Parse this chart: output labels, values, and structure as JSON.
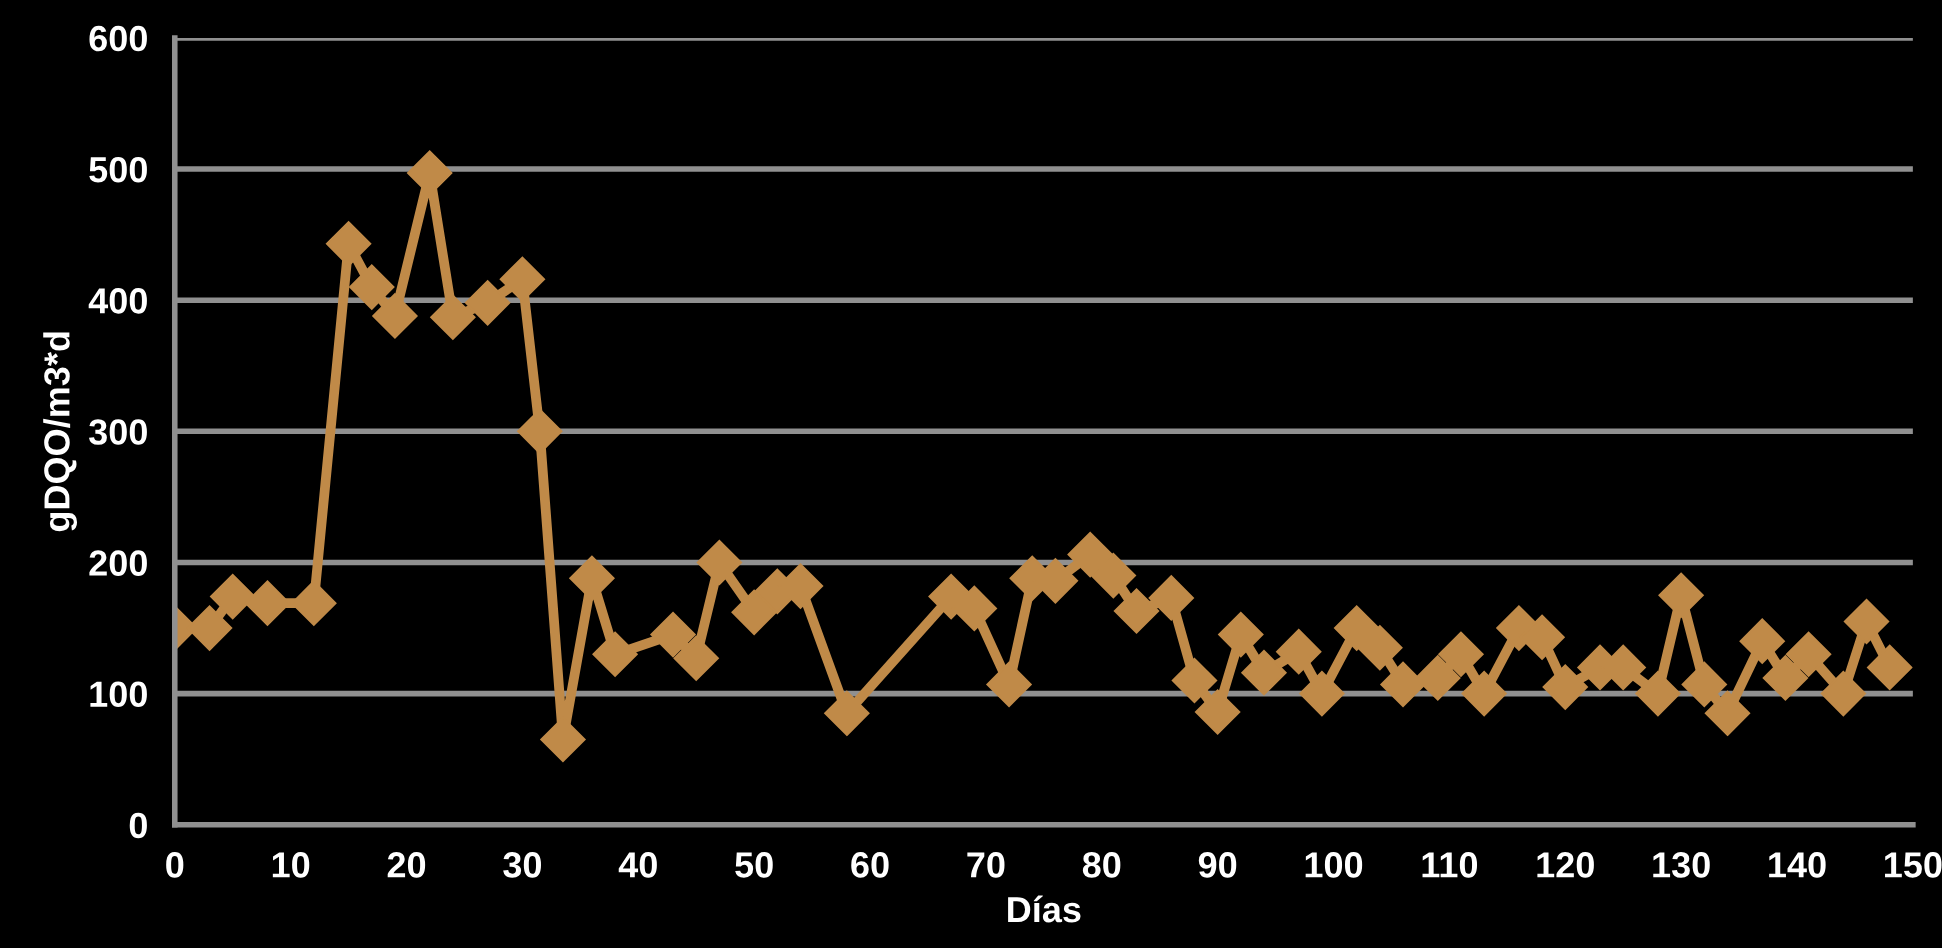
{
  "chart_data": {
    "type": "line",
    "xlabel": "Días",
    "ylabel": "gDQO/m3*d",
    "xlim": [
      0,
      150
    ],
    "xticks": [
      0,
      10,
      20,
      30,
      40,
      50,
      60,
      70,
      80,
      90,
      100,
      110,
      120,
      130,
      140,
      150
    ],
    "ylim": [
      0,
      600
    ],
    "yticks": [
      0,
      100,
      200,
      300,
      400,
      500,
      600
    ],
    "grid": "y",
    "marker": "diamond",
    "line_style": "solid",
    "legend": false,
    "series": [
      {
        "color": "#c08a48",
        "x": [
          0,
          3,
          5,
          8,
          12,
          15,
          17,
          19,
          22,
          24,
          27,
          30,
          31.5,
          33.5,
          36,
          38,
          43,
          45,
          47,
          50,
          52,
          54,
          58,
          67,
          69,
          72,
          74,
          76,
          79,
          81,
          83,
          86,
          88,
          90,
          92,
          94,
          97,
          99,
          102,
          104,
          106,
          109,
          111,
          113,
          116,
          118,
          120,
          123,
          125,
          128,
          130,
          132,
          134,
          137,
          139,
          141,
          144,
          146,
          148
        ],
        "values": [
          150,
          150,
          174,
          169,
          169,
          443,
          410,
          388,
          497,
          387,
          398,
          416,
          300,
          65,
          188,
          130,
          145,
          127,
          200,
          162,
          178,
          182,
          85,
          174,
          165,
          107,
          188,
          186,
          206,
          190,
          163,
          173,
          110,
          86,
          145,
          116,
          132,
          100,
          150,
          135,
          107,
          112,
          130,
          100,
          150,
          143,
          105,
          120,
          120,
          100,
          175,
          107,
          85,
          140,
          112,
          130,
          100,
          155,
          120
        ]
      }
    ]
  }
}
